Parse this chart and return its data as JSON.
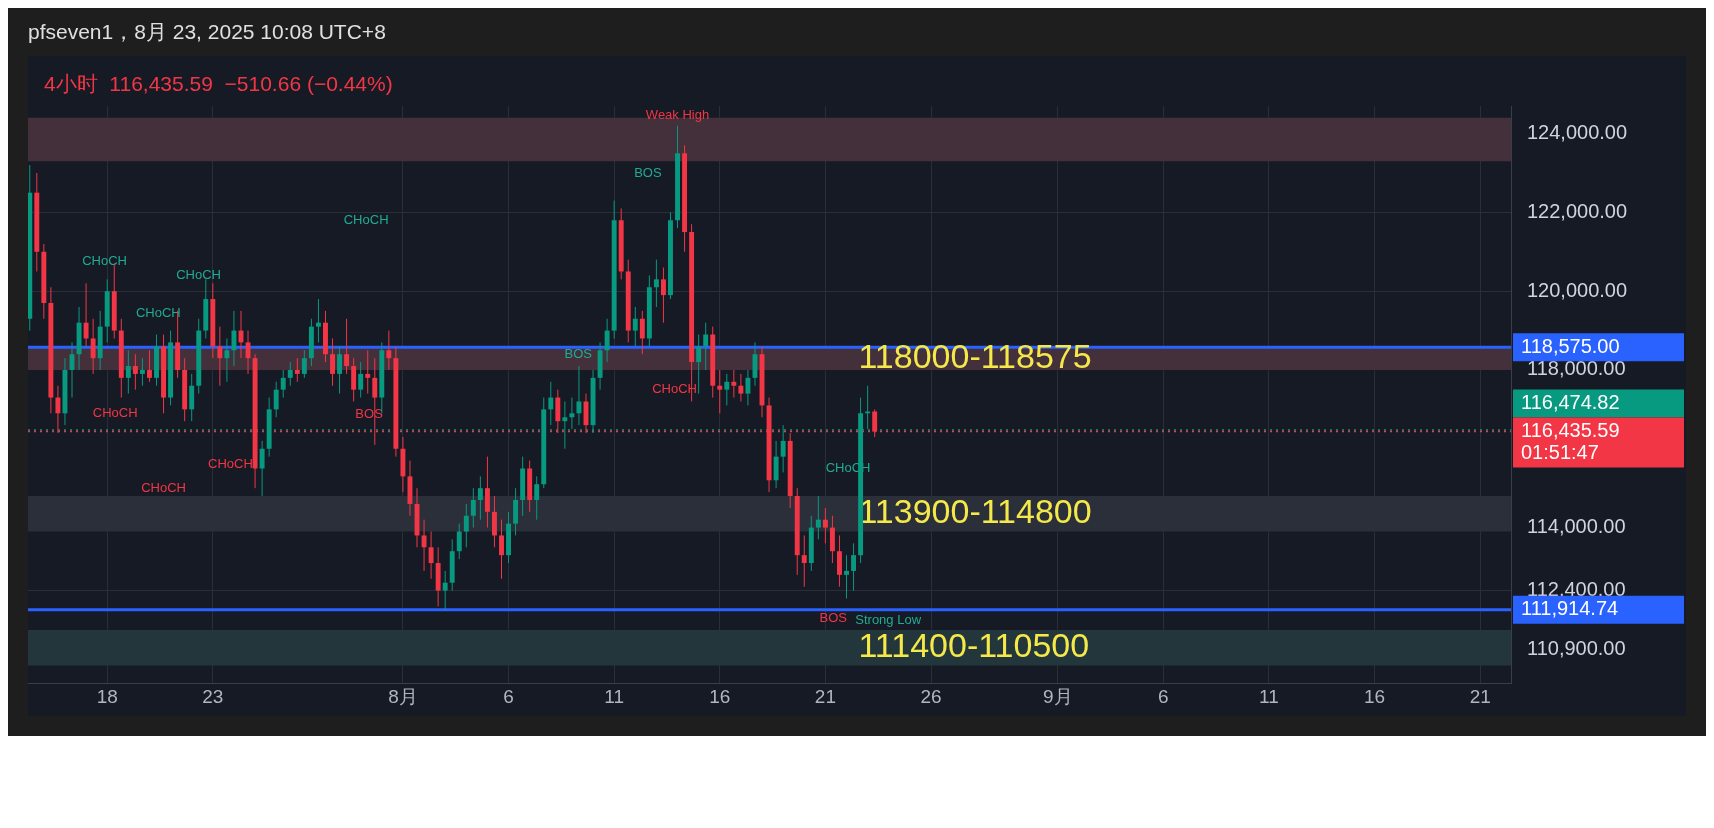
{
  "chart_data": {
    "type": "candlestick",
    "title": "pfseven1，8月 23, 2025 10:08 UTC+8",
    "subtitle": "4小时  116,435.59  −510.66 (−0.44%)",
    "x": [
      "2025-07-14T08:00",
      "2025-07-14T16:00",
      "2025-07-15T00:00",
      "2025-07-15T08:00",
      "2025-07-15T16:00",
      "2025-07-16T00:00",
      "2025-07-16T08:00",
      "2025-07-16T16:00",
      "2025-07-17T00:00",
      "2025-07-17T08:00",
      "2025-07-17T16:00",
      "2025-07-18T00:00",
      "2025-07-18T08:00",
      "2025-07-18T16:00",
      "2025-07-19T00:00",
      "2025-07-19T08:00",
      "2025-07-19T16:00",
      "2025-07-20T00:00",
      "2025-07-20T08:00",
      "2025-07-20T16:00",
      "2025-07-21T00:00",
      "2025-07-21T08:00",
      "2025-07-21T16:00",
      "2025-07-22T00:00",
      "2025-07-22T08:00",
      "2025-07-22T16:00",
      "2025-07-23T00:00",
      "2025-07-23T08:00",
      "2025-07-23T16:00",
      "2025-07-24T00:00",
      "2025-07-24T08:00",
      "2025-07-24T16:00",
      "2025-07-25T00:00",
      "2025-07-25T08:00",
      "2025-07-25T16:00",
      "2025-07-26T00:00",
      "2025-07-26T08:00",
      "2025-07-26T16:00",
      "2025-07-27T00:00",
      "2025-07-27T08:00",
      "2025-07-27T16:00",
      "2025-07-28T00:00",
      "2025-07-28T08:00",
      "2025-07-28T16:00",
      "2025-07-29T00:00",
      "2025-07-29T08:00",
      "2025-07-29T16:00",
      "2025-07-30T00:00",
      "2025-07-30T08:00",
      "2025-07-30T16:00",
      "2025-07-31T00:00",
      "2025-07-31T08:00",
      "2025-07-31T16:00",
      "2025-08-01T00:00",
      "2025-08-01T08:00",
      "2025-08-01T16:00",
      "2025-08-02T00:00",
      "2025-08-02T08:00",
      "2025-08-02T16:00",
      "2025-08-03T00:00",
      "2025-08-03T08:00",
      "2025-08-03T16:00",
      "2025-08-04T00:00",
      "2025-08-04T08:00",
      "2025-08-04T16:00",
      "2025-08-05T00:00",
      "2025-08-05T08:00",
      "2025-08-05T16:00",
      "2025-08-06T00:00",
      "2025-08-06T08:00",
      "2025-08-06T16:00",
      "2025-08-07T00:00",
      "2025-08-07T08:00",
      "2025-08-07T16:00",
      "2025-08-08T00:00",
      "2025-08-08T08:00",
      "2025-08-08T16:00",
      "2025-08-09T00:00",
      "2025-08-09T08:00",
      "2025-08-09T16:00",
      "2025-08-10T00:00",
      "2025-08-10T08:00",
      "2025-08-10T16:00",
      "2025-08-11T00:00",
      "2025-08-11T08:00",
      "2025-08-11T16:00",
      "2025-08-12T00:00",
      "2025-08-12T08:00",
      "2025-08-12T16:00",
      "2025-08-13T00:00",
      "2025-08-13T08:00",
      "2025-08-13T16:00",
      "2025-08-14T00:00",
      "2025-08-14T08:00",
      "2025-08-14T16:00",
      "2025-08-15T00:00",
      "2025-08-15T08:00",
      "2025-08-15T16:00",
      "2025-08-16T00:00",
      "2025-08-16T08:00",
      "2025-08-16T16:00",
      "2025-08-17T00:00",
      "2025-08-17T08:00",
      "2025-08-17T16:00",
      "2025-08-18T00:00",
      "2025-08-18T08:00",
      "2025-08-18T16:00",
      "2025-08-19T00:00",
      "2025-08-19T08:00",
      "2025-08-19T16:00",
      "2025-08-20T00:00",
      "2025-08-20T08:00",
      "2025-08-20T16:00",
      "2025-08-21T00:00",
      "2025-08-21T08:00",
      "2025-08-21T16:00",
      "2025-08-22T00:00",
      "2025-08-22T08:00",
      "2025-08-22T16:00",
      "2025-08-23T00:00",
      "2025-08-23T08:00"
    ],
    "ohlc": [
      [
        119300,
        123200,
        119000,
        122500
      ],
      [
        122500,
        123000,
        120500,
        121000
      ],
      [
        121000,
        121200,
        119300,
        119700
      ],
      [
        119700,
        120100,
        116900,
        117300
      ],
      [
        117300,
        117600,
        116400,
        116900
      ],
      [
        116900,
        118300,
        116600,
        118000
      ],
      [
        118000,
        118700,
        117300,
        118400
      ],
      [
        118400,
        119600,
        118000,
        119200
      ],
      [
        119200,
        120200,
        118600,
        118800
      ],
      [
        118800,
        119300,
        117900,
        118300
      ],
      [
        118300,
        119500,
        118000,
        119100
      ],
      [
        119100,
        120300,
        118700,
        120000
      ],
      [
        120000,
        120700,
        118800,
        119000
      ],
      [
        119000,
        119300,
        117300,
        117800
      ],
      [
        117800,
        118500,
        117400,
        118100
      ],
      [
        118100,
        118400,
        117500,
        117900
      ],
      [
        117900,
        118300,
        117600,
        118000
      ],
      [
        118000,
        118500,
        117700,
        117800
      ],
      [
        117800,
        118900,
        117600,
        118600
      ],
      [
        118600,
        118900,
        116900,
        117300
      ],
      [
        117300,
        119000,
        117100,
        118700
      ],
      [
        118700,
        119500,
        117800,
        118000
      ],
      [
        118000,
        118300,
        116700,
        117000
      ],
      [
        117000,
        117900,
        116700,
        117600
      ],
      [
        117600,
        119300,
        117400,
        119000
      ],
      [
        119000,
        120300,
        118800,
        119800
      ],
      [
        119800,
        120200,
        118300,
        118600
      ],
      [
        118600,
        119100,
        117600,
        118300
      ],
      [
        118300,
        118800,
        117700,
        118500
      ],
      [
        118500,
        119500,
        118100,
        119000
      ],
      [
        119000,
        119500,
        118300,
        118700
      ],
      [
        118700,
        119000,
        117900,
        118300
      ],
      [
        118300,
        118400,
        115000,
        115500
      ],
      [
        115500,
        116200,
        114800,
        116000
      ],
      [
        116000,
        117300,
        115800,
        117000
      ],
      [
        117000,
        117700,
        116800,
        117500
      ],
      [
        117500,
        118000,
        117300,
        117800
      ],
      [
        117800,
        118200,
        117600,
        118000
      ],
      [
        118000,
        118300,
        117700,
        117900
      ],
      [
        117900,
        118500,
        117800,
        118300
      ],
      [
        118300,
        119300,
        118100,
        119100
      ],
      [
        119100,
        119800,
        118700,
        119200
      ],
      [
        119200,
        119500,
        118200,
        118400
      ],
      [
        118400,
        118800,
        117600,
        117900
      ],
      [
        117900,
        118600,
        117400,
        118400
      ],
      [
        118400,
        119300,
        117900,
        118100
      ],
      [
        118100,
        118300,
        117200,
        117500
      ],
      [
        117500,
        118200,
        117300,
        117900
      ],
      [
        117900,
        118500,
        117400,
        117800
      ],
      [
        117800,
        118300,
        116100,
        117300
      ],
      [
        117300,
        118700,
        116900,
        118500
      ],
      [
        118500,
        119000,
        118000,
        118300
      ],
      [
        118300,
        118600,
        115800,
        116000
      ],
      [
        116000,
        116300,
        114900,
        115300
      ],
      [
        115300,
        115700,
        114300,
        114600
      ],
      [
        114600,
        115000,
        113500,
        113800
      ],
      [
        113800,
        114200,
        112900,
        113500
      ],
      [
        113500,
        113900,
        112700,
        113100
      ],
      [
        113100,
        113500,
        112000,
        112400
      ],
      [
        112400,
        112900,
        111920,
        112600
      ],
      [
        112600,
        113700,
        112400,
        113400
      ],
      [
        113400,
        114100,
        113200,
        113900
      ],
      [
        113900,
        114600,
        113500,
        114300
      ],
      [
        114300,
        115000,
        114000,
        114700
      ],
      [
        114700,
        115300,
        114200,
        115000
      ],
      [
        115000,
        115800,
        114000,
        114400
      ],
      [
        114400,
        114800,
        113500,
        113800
      ],
      [
        113800,
        114200,
        112700,
        113300
      ],
      [
        113300,
        114400,
        113100,
        114100
      ],
      [
        114100,
        115000,
        113800,
        114700
      ],
      [
        114700,
        115800,
        114300,
        115500
      ],
      [
        115500,
        115700,
        114400,
        114700
      ],
      [
        114700,
        115300,
        114200,
        115100
      ],
      [
        115100,
        117300,
        115000,
        117000
      ],
      [
        117000,
        117700,
        116600,
        117300
      ],
      [
        117300,
        117500,
        116400,
        116700
      ],
      [
        116700,
        117200,
        116000,
        116800
      ],
      [
        116800,
        117300,
        116500,
        116900
      ],
      [
        116900,
        118100,
        116600,
        117200
      ],
      [
        117200,
        117400,
        116400,
        116600
      ],
      [
        116600,
        118000,
        116400,
        117800
      ],
      [
        117800,
        118700,
        117500,
        118500
      ],
      [
        118500,
        119300,
        118200,
        119000
      ],
      [
        119000,
        122300,
        118800,
        121800
      ],
      [
        121800,
        122100,
        120300,
        120500
      ],
      [
        120500,
        120800,
        118700,
        119000
      ],
      [
        119000,
        119600,
        118600,
        119300
      ],
      [
        119300,
        119500,
        118400,
        118800
      ],
      [
        118800,
        120400,
        118600,
        120100
      ],
      [
        120100,
        120800,
        119600,
        120300
      ],
      [
        120300,
        120600,
        119200,
        119900
      ],
      [
        119900,
        122000,
        119800,
        121800
      ],
      [
        121800,
        124200,
        121600,
        123500
      ],
      [
        123500,
        123700,
        121000,
        121500
      ],
      [
        121500,
        121700,
        117200,
        118200
      ],
      [
        118200,
        118900,
        117400,
        118600
      ],
      [
        118600,
        119200,
        118000,
        118900
      ],
      [
        118900,
        119100,
        117300,
        117600
      ],
      [
        117600,
        118000,
        116900,
        117500
      ],
      [
        117500,
        117900,
        117100,
        117700
      ],
      [
        117700,
        118000,
        117300,
        117600
      ],
      [
        117600,
        117900,
        117200,
        117400
      ],
      [
        117400,
        118000,
        117100,
        117800
      ],
      [
        117800,
        118700,
        117600,
        118400
      ],
      [
        118400,
        118600,
        116800,
        117100
      ],
      [
        117100,
        117300,
        114900,
        115200
      ],
      [
        115200,
        116200,
        115000,
        115800
      ],
      [
        115800,
        116600,
        115400,
        116200
      ],
      [
        116200,
        116400,
        114500,
        114800
      ],
      [
        114800,
        115000,
        112800,
        113300
      ],
      [
        113300,
        113800,
        112500,
        113100
      ],
      [
        113100,
        114300,
        112900,
        114000
      ],
      [
        114000,
        114800,
        113700,
        114200
      ],
      [
        114200,
        114500,
        113600,
        114000
      ],
      [
        114000,
        114300,
        113100,
        113400
      ],
      [
        113400,
        113800,
        112500,
        112800
      ],
      [
        112800,
        113300,
        112200,
        112900
      ],
      [
        112900,
        113600,
        112400,
        113300
      ],
      [
        113300,
        117300,
        113100,
        116900
      ],
      [
        116900,
        117600,
        116500,
        116946
      ],
      [
        116946,
        117000,
        116300,
        116435.59
      ]
    ],
    "colors": [
      "#089981",
      "#f23645",
      "#f23645",
      "#f23645",
      "#f23645",
      "#089981",
      "#089981",
      "#089981",
      "#f23645",
      "#f23645",
      "#089981",
      "#089981",
      "#f23645",
      "#f23645",
      "#089981",
      "#f23645",
      "#089981",
      "#f23645",
      "#089981",
      "#f23645",
      "#089981",
      "#f23645",
      "#f23645",
      "#089981",
      "#089981",
      "#089981",
      "#f23645",
      "#f23645",
      "#089981",
      "#089981",
      "#f23645",
      "#f23645",
      "#f23645",
      "#089981",
      "#089981",
      "#089981",
      "#089981",
      "#089981",
      "#f23645",
      "#089981",
      "#089981",
      "#089981",
      "#f23645",
      "#f23645",
      "#089981",
      "#f23645",
      "#f23645",
      "#089981",
      "#f23645",
      "#f23645",
      "#089981",
      "#f23645",
      "#f23645",
      "#f23645",
      "#f23645",
      "#f23645",
      "#f23645",
      "#f23645",
      "#f23645",
      "#089981",
      "#089981",
      "#089981",
      "#089981",
      "#089981",
      "#089981",
      "#f23645",
      "#f23645",
      "#f23645",
      "#089981",
      "#089981",
      "#089981",
      "#f23645",
      "#089981",
      "#089981",
      "#089981",
      "#f23645",
      "#089981",
      "#089981",
      "#089981",
      "#f23645",
      "#089981",
      "#089981",
      "#089981",
      "#089981",
      "#f23645",
      "#f23645",
      "#089981",
      "#f23645",
      "#089981",
      "#089981",
      "#f23645",
      "#089981",
      "#089981",
      "#f23645",
      "#f23645",
      "#089981",
      "#089981",
      "#f23645",
      "#f23645",
      "#089981",
      "#f23645",
      "#f23645",
      "#089981",
      "#089981",
      "#f23645",
      "#f23645",
      "#089981",
      "#089981",
      "#f23645",
      "#f23645",
      "#f23645",
      "#089981",
      "#089981",
      "#f23645",
      "#f23645",
      "#f23645",
      "#089981",
      "#089981",
      "#089981",
      "#089981",
      "#f23645"
    ],
    "xlim": [
      "2025-07-14T06:00",
      "2025-09-22T11:00"
    ],
    "xticks": [
      {
        "value": "2025-07-18",
        "label": "18"
      },
      {
        "value": "2025-07-23",
        "label": "23"
      },
      {
        "value": "2025-08-01",
        "label": "8月"
      },
      {
        "value": "2025-08-06",
        "label": "6"
      },
      {
        "value": "2025-08-11",
        "label": "11"
      },
      {
        "value": "2025-08-16",
        "label": "16"
      },
      {
        "value": "2025-08-21",
        "label": "21"
      },
      {
        "value": "2025-08-26",
        "label": "26"
      },
      {
        "value": "2025-09-01",
        "label": "9月"
      },
      {
        "value": "2025-09-06",
        "label": "6"
      },
      {
        "value": "2025-09-11",
        "label": "11"
      },
      {
        "value": "2025-09-16",
        "label": "16"
      },
      {
        "value": "2025-09-21",
        "label": "21"
      }
    ],
    "ylim": [
      110050,
      124700
    ],
    "yticks": [
      {
        "value": 110900,
        "label": "110,900.00"
      },
      {
        "value": 112400,
        "label": "112,400.00"
      },
      {
        "value": 114000,
        "label": "114,000.00"
      },
      {
        "value": 118000,
        "label": "118,000.00"
      },
      {
        "value": 120000,
        "label": "120,000.00"
      },
      {
        "value": 122000,
        "label": "122,000.00"
      },
      {
        "value": 124000,
        "label": "124,000.00"
      }
    ],
    "grid": true,
    "bands": [
      {
        "axis": "y",
        "from": 123300,
        "to": 124400,
        "color": "#43303a"
      },
      {
        "axis": "y",
        "from": 118000,
        "to": 118575,
        "color": "#43303a",
        "label": "118000-118575"
      },
      {
        "axis": "y",
        "from": 113900,
        "to": 114800,
        "color": "#2b2f3a",
        "label": "113900-114800"
      },
      {
        "axis": "y",
        "from": 110500,
        "to": 111400,
        "color": "#23363b",
        "label": "111400-110500"
      }
    ],
    "ref_lines": [
      {
        "axis": "y",
        "value": 118575,
        "label": "118,575.00",
        "color": "#2962ff",
        "line_style": "solid"
      },
      {
        "axis": "y",
        "value": 116474.82,
        "label": "116,474.82",
        "color": "#089981",
        "line_style": "dotted"
      },
      {
        "axis": "y",
        "value": 116435.59,
        "label": "116,435.59\n01:51:47",
        "color": "#f23645",
        "line_style": "dotted"
      },
      {
        "axis": "y",
        "value": 111914.74,
        "label": "111,914.74",
        "color": "#2962ff",
        "line_style": "solid"
      }
    ],
    "annotations": [
      "CHoCH",
      "CHoCH",
      "CHoCH",
      "CHoCH",
      "CHoCH",
      "CHoCH",
      "CHoCH",
      "BOS",
      "BOS",
      "BOS",
      "CHoCH",
      "CHoCH",
      "BOS",
      {
        "text": "Weak High",
        "x": "2025-08-14T00:00",
        "y": 124200
      },
      "Strong Low"
    ]
  }
}
